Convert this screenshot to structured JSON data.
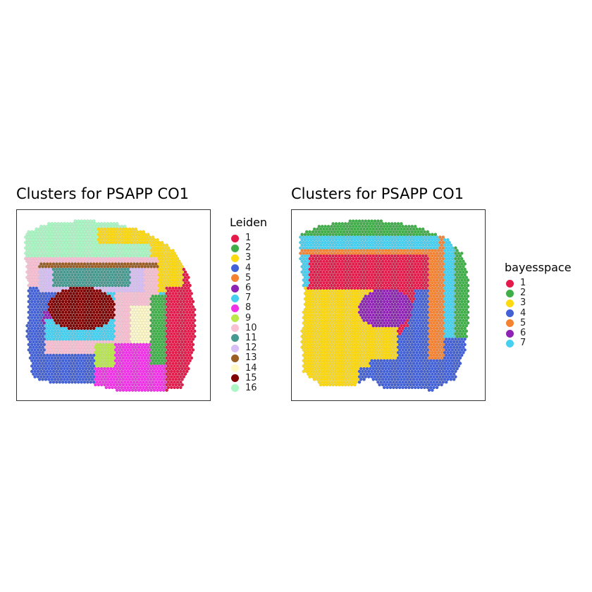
{
  "chart_data": [
    {
      "type": "scatter",
      "title": "Clusters for PSAPP CO1",
      "legend": {
        "title": "Leiden",
        "placement": "right",
        "entries": [
          {
            "label": "1",
            "color": "#E31A4A"
          },
          {
            "label": "2",
            "color": "#3FAE49"
          },
          {
            "label": "3",
            "color": "#FDD90F"
          },
          {
            "label": "4",
            "color": "#4361D6"
          },
          {
            "label": "5",
            "color": "#F58231"
          },
          {
            "label": "6",
            "color": "#8E22B4"
          },
          {
            "label": "7",
            "color": "#45CFF0"
          },
          {
            "label": "8",
            "color": "#F032E6"
          },
          {
            "label": "9",
            "color": "#B8E84A"
          },
          {
            "label": "10",
            "color": "#F9BFD2"
          },
          {
            "label": "11",
            "color": "#469990"
          },
          {
            "label": "12",
            "color": "#D7BEF5"
          },
          {
            "label": "13",
            "color": "#9A5E24"
          },
          {
            "label": "14",
            "color": "#FFF9C8"
          },
          {
            "label": "15",
            "color": "#800000"
          },
          {
            "label": "16",
            "color": "#A9F7C3"
          }
        ]
      },
      "grid": false
    },
    {
      "type": "scatter",
      "title": "Clusters for PSAPP CO1",
      "legend": {
        "title": "bayesspace",
        "placement": "right",
        "entries": [
          {
            "label": "1",
            "color": "#E31A4A"
          },
          {
            "label": "2",
            "color": "#3FAE49"
          },
          {
            "label": "3",
            "color": "#FDD90F"
          },
          {
            "label": "4",
            "color": "#4361D6"
          },
          {
            "label": "5",
            "color": "#F58231"
          },
          {
            "label": "6",
            "color": "#8E22B4"
          },
          {
            "label": "7",
            "color": "#45CFF0"
          }
        ]
      },
      "grid": false
    }
  ]
}
